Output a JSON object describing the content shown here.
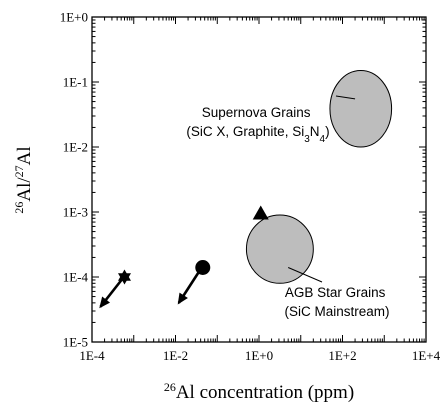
{
  "chart_data": {
    "type": "scatter",
    "title": "",
    "xlabel": {
      "sup": "26",
      "text": "Al concentration (ppm)"
    },
    "ylabel": {
      "sup1": "26",
      "mid": "Al/",
      "sup2": "27",
      "end": "Al"
    },
    "x_scale": "log",
    "y_scale": "log",
    "xlim": [
      0.0001,
      10000
    ],
    "ylim": [
      1e-05,
      1
    ],
    "x_ticks": [
      {
        "value": 0.0001,
        "label": "1E-4"
      },
      {
        "value": 0.01,
        "label": "1E-2"
      },
      {
        "value": 1,
        "label": "1E+0"
      },
      {
        "value": 100,
        "label": "1E+2"
      },
      {
        "value": 10000,
        "label": "1E+4"
      }
    ],
    "y_ticks": [
      {
        "value": 1e-05,
        "label": "1E-5"
      },
      {
        "value": 0.0001,
        "label": "1E-4"
      },
      {
        "value": 0.001,
        "label": "1E-3"
      },
      {
        "value": 0.01,
        "label": "1E-2"
      },
      {
        "value": 0.1,
        "label": "1E-1"
      },
      {
        "value": 1,
        "label": "1E+0"
      }
    ],
    "grid": false,
    "regions": [
      {
        "name": "supernova-grains",
        "x_range": [
          50,
          1500
        ],
        "y_range": [
          0.01,
          0.15
        ],
        "fill": "#bdbdbd",
        "label_lines": [
          {
            "text": "Supernova Grains"
          },
          {
            "text": "(SiC X, Graphite, Si",
            "sub": "3",
            "rest": "N",
            "sub2": "4",
            "end": ")"
          }
        ],
        "leader_to": [
          200,
          0.055
        ]
      },
      {
        "name": "agb-star-grains",
        "x_range": [
          0.5,
          20
        ],
        "y_range": [
          8e-05,
          0.0009
        ],
        "fill": "#bdbdbd",
        "label_lines": [
          {
            "text": "AGB Star Grains"
          },
          {
            "text": "(SiC Mainstream)"
          }
        ],
        "leader_to": [
          5,
          0.00014
        ]
      }
    ],
    "points": [
      {
        "name": "star-point",
        "marker": "star",
        "x": 0.0006,
        "y": 0.0001,
        "arrow_to": [
          0.00016,
          3.5e-05
        ]
      },
      {
        "name": "circle-point",
        "marker": "circle",
        "x": 0.045,
        "y": 0.00014,
        "arrow_to": [
          0.012,
          4e-05
        ]
      },
      {
        "name": "triangle-point",
        "marker": "triangle",
        "x": 1.1,
        "y": 0.00095
      }
    ]
  }
}
